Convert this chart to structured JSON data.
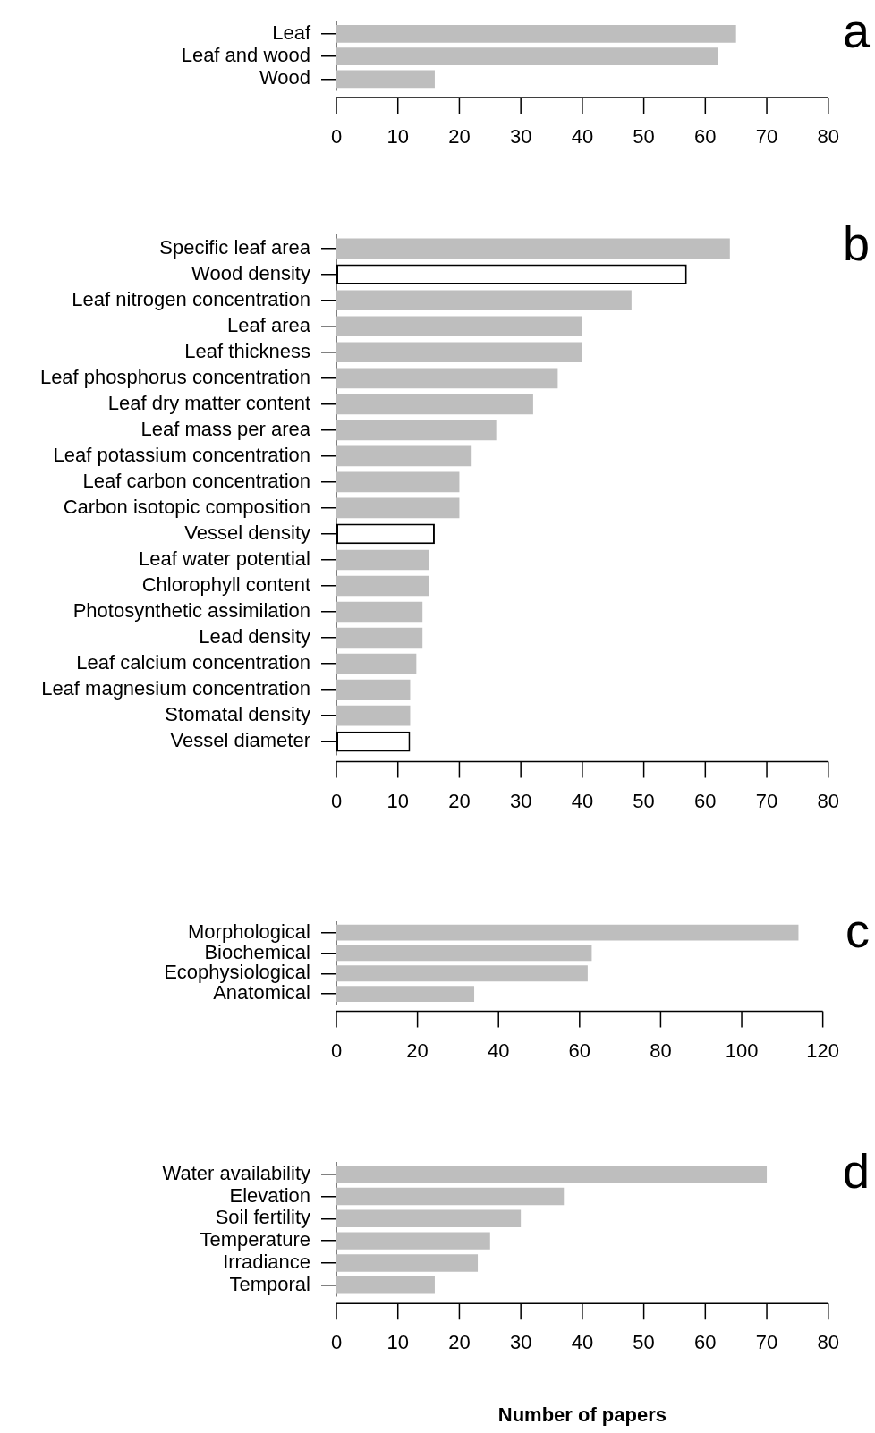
{
  "chart_data": [
    {
      "type": "bar",
      "orientation": "horizontal",
      "title": "a",
      "categories": [
        "Leaf",
        "Leaf and wood",
        "Wood"
      ],
      "values": [
        65,
        62,
        16
      ],
      "color": "#bebebe",
      "xlim": [
        0,
        80
      ],
      "xticks": [
        0,
        10,
        20,
        30,
        40,
        50,
        60,
        70,
        80
      ]
    },
    {
      "type": "bar",
      "orientation": "horizontal",
      "title": "b",
      "categories": [
        "Specific leaf area",
        "Wood density",
        "Leaf nitrogen concentration",
        "Leaf area",
        "Leaf thickness",
        "Leaf phosphorus concentration",
        "Leaf dry matter content",
        "Leaf mass per area",
        "Leaf potassium concentration",
        "Leaf carbon concentration",
        "Carbon isotopic composition",
        "Vessel density",
        "Leaf water potential",
        "Chlorophyll content",
        "Photosynthetic assimilation",
        "Lead density",
        "Leaf calcium concentration",
        "Leaf magnesium concentration",
        "Stomatal density",
        "Vessel diameter"
      ],
      "values": [
        64,
        57,
        48,
        40,
        40,
        36,
        32,
        26,
        22,
        20,
        20,
        16,
        15,
        15,
        14,
        14,
        13,
        12,
        12,
        12
      ],
      "colors": [
        "#bebebe",
        "#ffffff",
        "#bebebe",
        "#bebebe",
        "#bebebe",
        "#bebebe",
        "#bebebe",
        "#bebebe",
        "#bebebe",
        "#bebebe",
        "#bebebe",
        "#ffffff",
        "#bebebe",
        "#bebebe",
        "#bebebe",
        "#bebebe",
        "#bebebe",
        "#bebebe",
        "#bebebe",
        "#ffffff"
      ],
      "xlim": [
        0,
        80
      ],
      "xticks": [
        0,
        10,
        20,
        30,
        40,
        50,
        60,
        70,
        80
      ]
    },
    {
      "type": "bar",
      "orientation": "horizontal",
      "title": "c",
      "categories": [
        "Morphological",
        "Biochemical",
        "Ecophysiological",
        "Anatomical"
      ],
      "values": [
        114,
        63,
        62,
        34
      ],
      "color": "#bebebe",
      "xlim": [
        0,
        120
      ],
      "xticks": [
        0,
        20,
        40,
        60,
        80,
        100,
        120
      ]
    },
    {
      "type": "bar",
      "orientation": "horizontal",
      "title": "d",
      "xlabel": "Number of papers",
      "categories": [
        "Water availability",
        "Elevation",
        "Soil fertility",
        "Temperature",
        "Irradiance",
        "Temporal"
      ],
      "values": [
        70,
        37,
        30,
        25,
        23,
        16
      ],
      "color": "#bebebe",
      "xlim": [
        0,
        80
      ],
      "xticks": [
        0,
        10,
        20,
        30,
        40,
        50,
        60,
        70,
        80
      ]
    }
  ]
}
